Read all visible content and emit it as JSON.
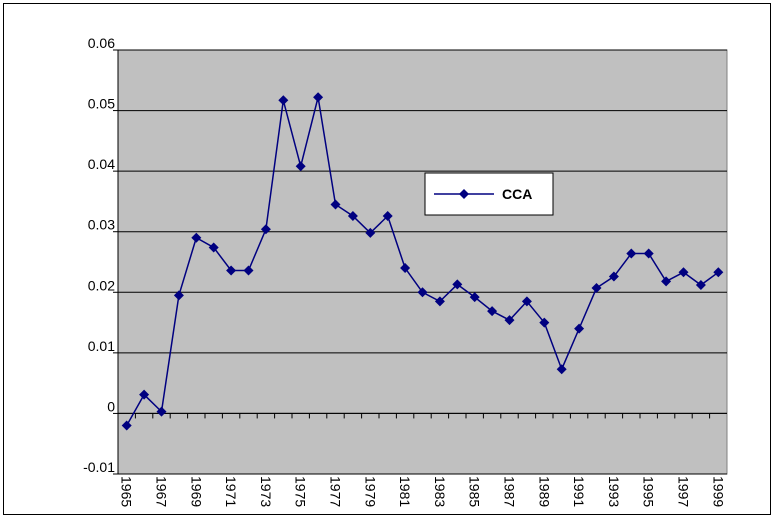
{
  "chart_data": {
    "type": "line",
    "categories": [
      "1965",
      null,
      "1967",
      null,
      "1969",
      null,
      "1971",
      null,
      "1973",
      null,
      "1975",
      null,
      "1977",
      null,
      "1979",
      null,
      "1981",
      null,
      "1983",
      null,
      "1985",
      null,
      "1987",
      null,
      "1989",
      null,
      "1991",
      null,
      "1993",
      null,
      "1995",
      null,
      "1997",
      null,
      "1999"
    ],
    "series": [
      {
        "name": "CCA",
        "color": "#000080",
        "values": [
          -0.002,
          0.0031,
          0.0003,
          0.0195,
          0.029,
          0.0274,
          0.0236,
          0.0236,
          0.0304,
          0.0517,
          0.0408,
          0.0522,
          0.0345,
          0.0326,
          0.0298,
          0.0326,
          0.024,
          0.02,
          0.0185,
          0.0213,
          0.0192,
          0.0169,
          0.0154,
          0.0185,
          0.015,
          0.0073,
          0.014,
          0.0207,
          0.0226,
          0.0264,
          0.0264,
          0.0218,
          0.0233,
          0.0212,
          0.0233
        ]
      }
    ],
    "ylim": [
      -0.01,
      0.06
    ],
    "yticks": [
      -0.01,
      0,
      0.01,
      0.02,
      0.03,
      0.04,
      0.05,
      0.06
    ],
    "grid": true,
    "background": "#c0c0c0"
  }
}
